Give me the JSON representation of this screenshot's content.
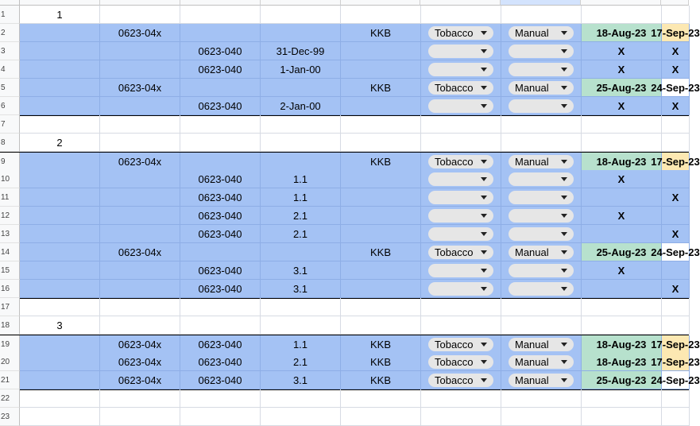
{
  "sheet": {
    "dropdowns": {
      "category": "Tobacco",
      "mode": "Manual"
    },
    "rows": [
      {
        "n": "1",
        "style": "plain",
        "a": "1"
      },
      {
        "n": "2",
        "style": "blue",
        "b": "0623-04x",
        "e": "KKB",
        "f": "dd-cat",
        "g": "dd-mode",
        "h": "18-Aug-23",
        "hc": "green",
        "i": "17-Sep-23",
        "ic": "yellow"
      },
      {
        "n": "3",
        "style": "blue",
        "c": "0623-040",
        "d": "31-Dec-99",
        "f": "dd",
        "g": "dd",
        "h": "X",
        "i": "X"
      },
      {
        "n": "4",
        "style": "blue",
        "c": "0623-040",
        "d": "1-Jan-00",
        "f": "dd",
        "g": "dd",
        "h": "X",
        "i": "X"
      },
      {
        "n": "5",
        "style": "blue",
        "b": "0623-04x",
        "e": "KKB",
        "f": "dd-cat",
        "g": "dd-mode",
        "h": "25-Aug-23",
        "hc": "green",
        "i": "24-Sep-23",
        "ic": "white"
      },
      {
        "n": "6",
        "style": "blue",
        "c": "0623-040",
        "d": "2-Jan-00",
        "f": "dd",
        "g": "dd",
        "h": "X",
        "i": "X",
        "thick": true
      },
      {
        "n": "7",
        "style": "plain"
      },
      {
        "n": "8",
        "style": "plain",
        "a": "2"
      },
      {
        "n": "9",
        "style": "blue",
        "b": "0623-04x",
        "e": "KKB",
        "f": "dd-cat",
        "g": "dd-mode",
        "h": "18-Aug-23",
        "hc": "green",
        "i": "17-Sep-23",
        "ic": "yellow",
        "topthick": true
      },
      {
        "n": "10",
        "style": "blue",
        "c": "0623-040",
        "d": "1.1",
        "f": "dd",
        "g": "dd",
        "h": "X"
      },
      {
        "n": "11",
        "style": "blue",
        "c": "0623-040",
        "d": "1.1",
        "f": "dd",
        "g": "dd",
        "i": "X"
      },
      {
        "n": "12",
        "style": "blue",
        "c": "0623-040",
        "d": "2.1",
        "f": "dd",
        "g": "dd",
        "h": "X"
      },
      {
        "n": "13",
        "style": "blue",
        "c": "0623-040",
        "d": "2.1",
        "f": "dd",
        "g": "dd",
        "i": "X"
      },
      {
        "n": "14",
        "style": "blue",
        "b": "0623-04x",
        "e": "KKB",
        "f": "dd-cat",
        "g": "dd-mode",
        "h": "25-Aug-23",
        "hc": "green",
        "i": "24-Sep-23",
        "ic": "white"
      },
      {
        "n": "15",
        "style": "blue",
        "c": "0623-040",
        "d": "3.1",
        "f": "dd",
        "g": "dd",
        "h": "X"
      },
      {
        "n": "16",
        "style": "blue",
        "c": "0623-040",
        "d": "3.1",
        "f": "dd",
        "g": "dd",
        "i": "X",
        "thick": true
      },
      {
        "n": "17",
        "style": "plain"
      },
      {
        "n": "18",
        "style": "plain",
        "a": "3"
      },
      {
        "n": "19",
        "style": "blue",
        "b": "0623-04x",
        "c": "0623-040",
        "d": "1.1",
        "e": "KKB",
        "f": "dd-cat",
        "g": "dd-mode",
        "h": "18-Aug-23",
        "hc": "green",
        "i": "17-Sep-23",
        "ic": "yellow",
        "topthick": true
      },
      {
        "n": "20",
        "style": "blue",
        "b": "0623-04x",
        "c": "0623-040",
        "d": "2.1",
        "e": "KKB",
        "f": "dd-cat",
        "g": "dd-mode",
        "h": "18-Aug-23",
        "hc": "green",
        "i": "17-Sep-23",
        "ic": "yellow"
      },
      {
        "n": "21",
        "style": "blue",
        "b": "0623-04x",
        "c": "0623-040",
        "d": "3.1",
        "e": "KKB",
        "f": "dd-cat",
        "g": "dd-mode",
        "h": "25-Aug-23",
        "hc": "green",
        "i": "24-Sep-23",
        "ic": "white",
        "thick": true
      },
      {
        "n": "22",
        "style": "plain"
      },
      {
        "n": "23",
        "style": "plain"
      }
    ]
  }
}
